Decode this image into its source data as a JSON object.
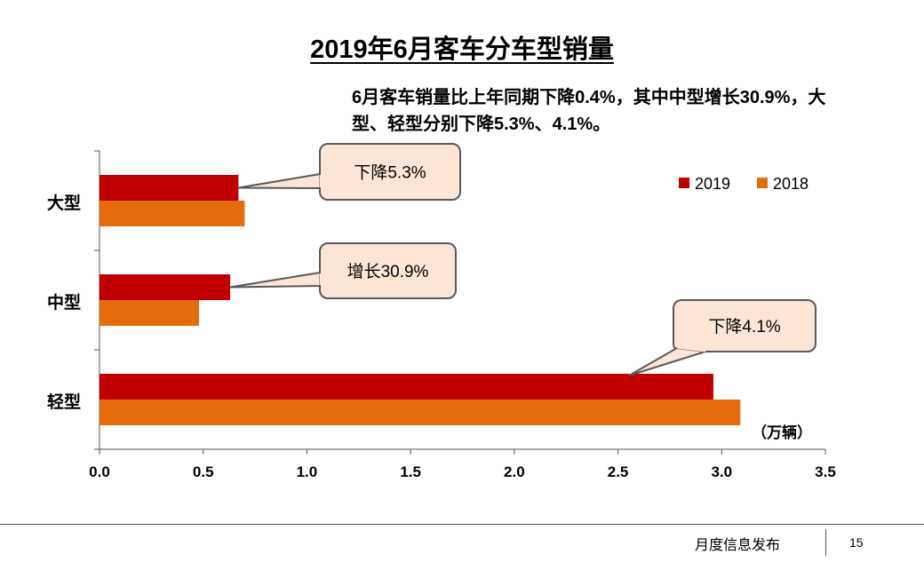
{
  "page": {
    "title": "2019年6月客车分车型销量",
    "description": "6月客车销量比上年同期下降0.4%，其中中型增长30.9%，大型、轻型分别下降5.3%、4.1%。",
    "footer": "月度信息发布",
    "page_number": "15"
  },
  "chart_data": {
    "type": "bar",
    "orientation": "horizontal",
    "title": "",
    "categories": [
      "大型",
      "中型",
      "轻型"
    ],
    "series": [
      {
        "name": "2019",
        "color": "#c00000",
        "values": [
          0.67,
          0.63,
          2.96
        ]
      },
      {
        "name": "2018",
        "color": "#e46c0a",
        "values": [
          0.7,
          0.48,
          3.09
        ]
      }
    ],
    "xlim": [
      0,
      3.5
    ],
    "xticks": [
      "0.0",
      "0.5",
      "1.0",
      "1.5",
      "2.0",
      "2.5",
      "3.0",
      "3.5"
    ],
    "unit_label": "（万辆）",
    "legend_position": "top-right",
    "grid": false,
    "annotations": [
      {
        "text": "下降5.3%",
        "category": "大型"
      },
      {
        "text": "增长30.9%",
        "category": "中型"
      },
      {
        "text": "下降4.1%",
        "category": "轻型"
      }
    ]
  }
}
